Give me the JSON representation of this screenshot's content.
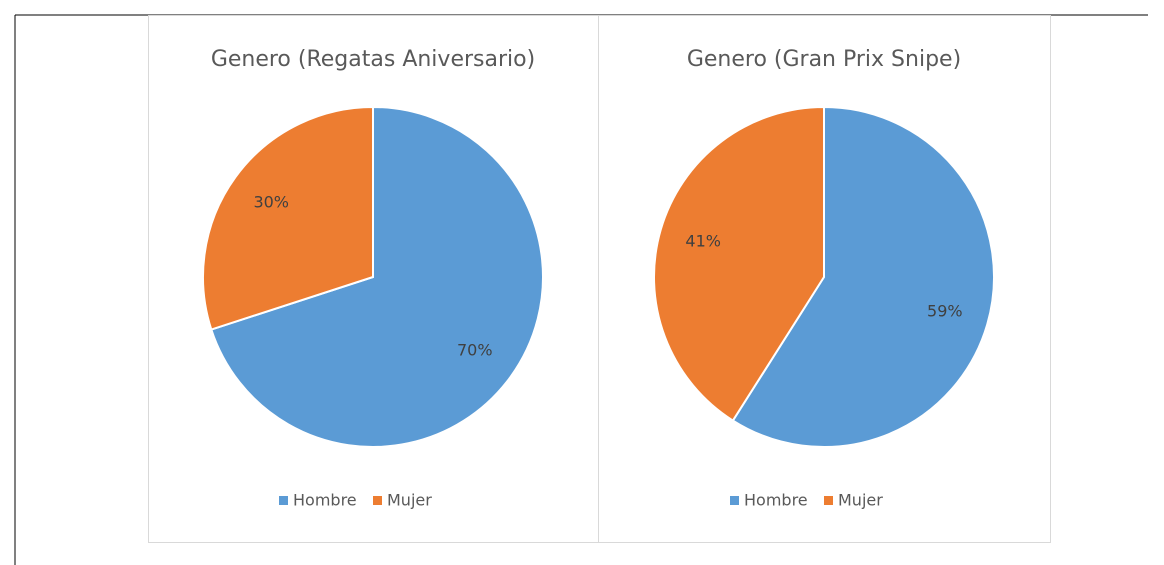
{
  "chart_data": [
    {
      "type": "pie",
      "title": "Genero (Regatas Aniversario)",
      "categories": [
        "Hombre",
        "Mujer"
      ],
      "values": [
        70,
        30
      ],
      "value_labels": [
        "70%",
        "30%"
      ],
      "colors": [
        "#5b9bd5",
        "#ed7d31"
      ],
      "legend": "bottom"
    },
    {
      "type": "pie",
      "title": "Genero (Gran Prix Snipe)",
      "categories": [
        "Hombre",
        "Mujer"
      ],
      "values": [
        59,
        41
      ],
      "value_labels": [
        "59%",
        "41%"
      ],
      "colors": [
        "#5b9bd5",
        "#ed7d31"
      ],
      "legend": "bottom"
    }
  ]
}
